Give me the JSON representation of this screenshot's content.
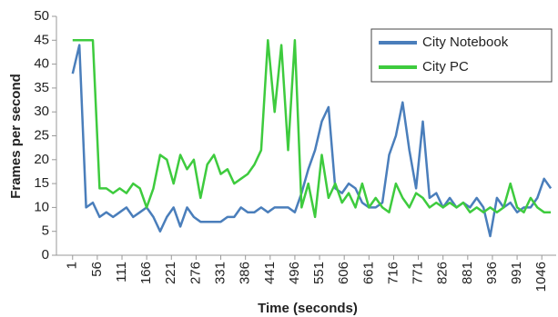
{
  "chart_data": {
    "type": "line",
    "xlabel": "Time (seconds)",
    "ylabel": "Frames per second",
    "x": [
      1,
      16,
      31,
      46,
      61,
      76,
      91,
      106,
      121,
      136,
      151,
      166,
      181,
      196,
      211,
      226,
      241,
      256,
      271,
      286,
      301,
      316,
      331,
      346,
      361,
      376,
      391,
      406,
      421,
      436,
      451,
      466,
      481,
      496,
      511,
      526,
      541,
      556,
      571,
      586,
      601,
      616,
      631,
      646,
      661,
      676,
      691,
      706,
      721,
      736,
      751,
      766,
      781,
      796,
      811,
      826,
      841,
      856,
      871,
      886,
      901,
      916,
      931,
      946,
      961,
      976,
      991,
      1006,
      1021,
      1036,
      1051,
      1066
    ],
    "series": [
      {
        "name": "City Notebook",
        "color": "#4a7ebb",
        "values": [
          38,
          44,
          10,
          11,
          8,
          9,
          8,
          9,
          10,
          8,
          9,
          10,
          8,
          5,
          8,
          10,
          6,
          10,
          8,
          7,
          7,
          7,
          7,
          8,
          8,
          10,
          9,
          9,
          10,
          9,
          10,
          10,
          10,
          9,
          13,
          18,
          22,
          28,
          31,
          14,
          13,
          15,
          14,
          11,
          10,
          10,
          11,
          21,
          25,
          32,
          22,
          14,
          28,
          12,
          13,
          10,
          12,
          10,
          11,
          10,
          12,
          10,
          4,
          12,
          10,
          11,
          9,
          10,
          10,
          12,
          16,
          14
        ]
      },
      {
        "name": "City PC",
        "color": "#3ecb3e",
        "values": [
          45,
          45,
          45,
          45,
          14,
          14,
          13,
          14,
          13,
          15,
          14,
          10,
          14,
          21,
          20,
          15,
          21,
          18,
          20,
          12,
          19,
          21,
          17,
          18,
          15,
          16,
          17,
          19,
          22,
          45,
          30,
          44,
          22,
          45,
          10,
          15,
          8,
          21,
          12,
          15,
          11,
          13,
          10,
          15,
          10,
          12,
          10,
          9,
          15,
          12,
          10,
          13,
          12,
          10,
          11,
          10,
          11,
          10,
          11,
          9,
          10,
          9,
          10,
          9,
          10,
          15,
          10,
          9,
          12,
          10,
          9,
          9
        ]
      }
    ],
    "xlim": [
      -35,
      1078
    ],
    "ylim": [
      0,
      50
    ],
    "xticks": [
      1,
      56,
      111,
      166,
      221,
      276,
      331,
      386,
      441,
      496,
      551,
      606,
      661,
      716,
      771,
      826,
      881,
      936,
      991,
      1046
    ],
    "yticks": [
      0,
      5,
      10,
      15,
      20,
      25,
      30,
      35,
      40,
      45,
      50
    ],
    "legend": "upper right"
  }
}
